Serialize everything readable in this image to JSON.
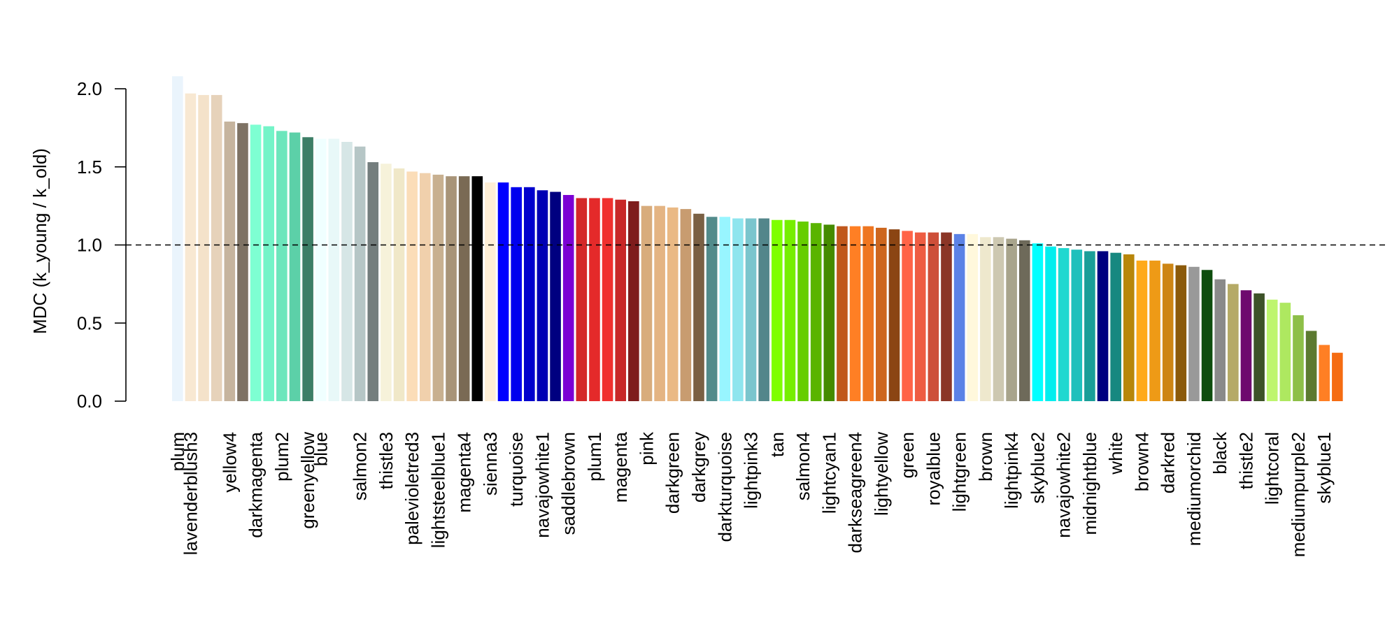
{
  "chart_data": {
    "type": "bar",
    "title": "",
    "xlabel": "",
    "ylabel": "MDC (k_young / k_old)",
    "ylim": [
      0,
      2.0
    ],
    "yticks": [
      "0.0",
      "0.5",
      "1.0",
      "1.5",
      "2.0"
    ],
    "reference_line": 1.0,
    "reference_line_style": "dashed",
    "grid": false,
    "labeled_categories": [
      "plum",
      "lavenderblush3",
      "yellow4",
      "darkmagenta",
      "plum2",
      "greenyellow",
      "blue",
      "salmon2",
      "thistle3",
      "palevioletred3",
      "lightsteelblue1",
      "magenta4",
      "sienna3",
      "turquoise",
      "navajowhite1",
      "saddlebrown",
      "plum1",
      "magenta",
      "pink",
      "darkgreen",
      "darkgrey",
      "darkturquoise",
      "lightpink3",
      "tan",
      "salmon4",
      "lightcyan1",
      "darkseagreen4",
      "lightyellow",
      "green",
      "royalblue",
      "lightgreen",
      "brown",
      "lightpink4",
      "skyblue2",
      "navajowhite2",
      "midnightblue",
      "white",
      "brown4",
      "darkred",
      "mediumorchid",
      "black",
      "thistle2",
      "lightcoral",
      "mediumpurple2",
      "skyblue1"
    ],
    "groups": [
      {
        "label": "plum",
        "values": [
          2.08
        ],
        "colors": [
          "#EAF4FC"
        ]
      },
      {
        "label": "lavenderblush3",
        "values": [
          1.97,
          1.96,
          1.96
        ],
        "colors": [
          "#F8E8D2",
          "#F4E2CA",
          "#E6D2BA"
        ]
      },
      {
        "label": "yellow4",
        "values": [
          1.79,
          1.78
        ],
        "colors": [
          "#C6B49E",
          "#7E7264"
        ]
      },
      {
        "label": "darkmagenta",
        "values": [
          1.77,
          1.76
        ],
        "colors": [
          "#7EFFD2",
          "#74F4C8"
        ]
      },
      {
        "label": "plum2",
        "values": [
          1.73,
          1.72
        ],
        "colors": [
          "#6CE6BC",
          "#5CD0A8"
        ]
      },
      {
        "label": "greenyellow",
        "values": [
          1.69
        ],
        "colors": [
          "#3C7E66"
        ]
      },
      {
        "label": "blue",
        "values": [
          1.68,
          1.68,
          1.66
        ],
        "colors": [
          "#F0FFFF",
          "#E8F8F8",
          "#D6E6E6"
        ]
      },
      {
        "label": "salmon2",
        "values": [
          1.63,
          1.53
        ],
        "colors": [
          "#B6C6C6",
          "#747E7E"
        ]
      },
      {
        "label": "thistle3",
        "values": [
          1.52,
          1.49
        ],
        "colors": [
          "#F6F2DA",
          "#F0E8C8"
        ]
      },
      {
        "label": "palevioletred3",
        "values": [
          1.47,
          1.46
        ],
        "colors": [
          "#FBDDB8",
          "#F0D0AC"
        ]
      },
      {
        "label": "lightsteelblue1",
        "values": [
          1.45,
          1.44
        ],
        "colors": [
          "#C8B090",
          "#A89478"
        ]
      },
      {
        "label": "magenta4",
        "values": [
          1.44,
          1.44
        ],
        "colors": [
          "#7A6A54",
          "#000000"
        ]
      },
      {
        "label": "sienna3",
        "values": [
          1.4,
          1.4
        ],
        "colors": [
          "#FFEFD6",
          "#0000FF"
        ]
      },
      {
        "label": "turquoise",
        "values": [
          1.37,
          1.37
        ],
        "colors": [
          "#0000EE",
          "#0000CD"
        ]
      },
      {
        "label": "navajowhite1",
        "values": [
          1.35,
          1.34
        ],
        "colors": [
          "#0000B4",
          "#000080"
        ]
      },
      {
        "label": "saddlebrown",
        "values": [
          1.32,
          1.3
        ],
        "colors": [
          "#7B00D4",
          "#D42828"
        ]
      },
      {
        "label": "plum1",
        "values": [
          1.3,
          1.3
        ],
        "colors": [
          "#E42A2A",
          "#F0302E"
        ]
      },
      {
        "label": "magenta",
        "values": [
          1.29,
          1.28
        ],
        "colors": [
          "#C82828",
          "#7E1C1C"
        ]
      },
      {
        "label": "pink",
        "values": [
          1.25,
          1.25
        ],
        "colors": [
          "#D8AC7C",
          "#E4B483"
        ]
      },
      {
        "label": "darkgreen",
        "values": [
          1.24,
          1.23
        ],
        "colors": [
          "#EAB984",
          "#C89C70"
        ]
      },
      {
        "label": "darkgrey",
        "values": [
          1.2,
          1.18
        ],
        "colors": [
          "#7A6044",
          "#528B8B"
        ]
      },
      {
        "label": "darkturquoise",
        "values": [
          1.18,
          1.17
        ],
        "colors": [
          "#98F5FF",
          "#8EE5EE"
        ]
      },
      {
        "label": "lightpink3",
        "values": [
          1.17,
          1.17
        ],
        "colors": [
          "#7AC5CD",
          "#53868B"
        ]
      },
      {
        "label": "tan",
        "values": [
          1.16,
          1.16
        ],
        "colors": [
          "#7FFF00",
          "#76EE00"
        ]
      },
      {
        "label": "salmon4",
        "values": [
          1.15,
          1.14
        ],
        "colors": [
          "#66CD00",
          "#5AB400"
        ]
      },
      {
        "label": "lightcyan1",
        "values": [
          1.13,
          1.12
        ],
        "colors": [
          "#458B00",
          "#C0581C"
        ]
      },
      {
        "label": "darkseagreen4",
        "values": [
          1.12,
          1.12
        ],
        "colors": [
          "#FF7F24",
          "#EE7621"
        ]
      },
      {
        "label": "lightyellow",
        "values": [
          1.11,
          1.1
        ],
        "colors": [
          "#CD661D",
          "#8B4513"
        ]
      },
      {
        "label": "green",
        "values": [
          1.09,
          1.08
        ],
        "colors": [
          "#FF6347",
          "#EE5C42"
        ]
      },
      {
        "label": "royalblue",
        "values": [
          1.08,
          1.08
        ],
        "colors": [
          "#CD4F39",
          "#8B3626"
        ]
      },
      {
        "label": "lightgreen",
        "values": [
          1.07,
          1.07
        ],
        "colors": [
          "#5B82E6",
          "#FFF8DC"
        ]
      },
      {
        "label": "brown",
        "values": [
          1.05,
          1.05
        ],
        "colors": [
          "#EEE8CD",
          "#CDC8B1"
        ]
      },
      {
        "label": "lightpink4",
        "values": [
          1.04,
          1.03
        ],
        "colors": [
          "#A8A48C",
          "#6E6A5A"
        ]
      },
      {
        "label": "skyblue2",
        "values": [
          1.01,
          0.99
        ],
        "colors": [
          "#00FFFF",
          "#00EEEE"
        ]
      },
      {
        "label": "navajowhite2",
        "values": [
          0.98,
          0.97
        ],
        "colors": [
          "#20D8D0",
          "#20C0BC"
        ]
      },
      {
        "label": "midnightblue",
        "values": [
          0.96,
          0.96
        ],
        "colors": [
          "#1A9E98",
          "#000080"
        ]
      },
      {
        "label": "white",
        "values": [
          0.95,
          0.94
        ],
        "colors": [
          "#168880",
          "#B8860B"
        ]
      },
      {
        "label": "brown4",
        "values": [
          0.9,
          0.9
        ],
        "colors": [
          "#FFAA1A",
          "#EE9A16"
        ]
      },
      {
        "label": "darkred",
        "values": [
          0.88,
          0.87
        ],
        "colors": [
          "#CD8514",
          "#8B5A0A"
        ]
      },
      {
        "label": "mediumorchid",
        "values": [
          0.86,
          0.84
        ],
        "colors": [
          "#999999",
          "#0E4D0E"
        ]
      },
      {
        "label": "black",
        "values": [
          0.78,
          0.75
        ],
        "colors": [
          "#8A8A8A",
          "#B5AA66"
        ]
      },
      {
        "label": "thistle2",
        "values": [
          0.71,
          0.69
        ],
        "colors": [
          "#6E0A6E",
          "#3D5228"
        ]
      },
      {
        "label": "lightcoral",
        "values": [
          0.65,
          0.63
        ],
        "colors": [
          "#BEF56E",
          "#AEE860"
        ]
      },
      {
        "label": "mediumpurple2",
        "values": [
          0.55,
          0.45
        ],
        "colors": [
          "#8DBF48",
          "#5C7A30"
        ]
      },
      {
        "label": "skyblue1",
        "values": [
          0.36,
          0.31
        ],
        "colors": [
          "#FF7F24",
          "#F56C12"
        ]
      }
    ]
  }
}
